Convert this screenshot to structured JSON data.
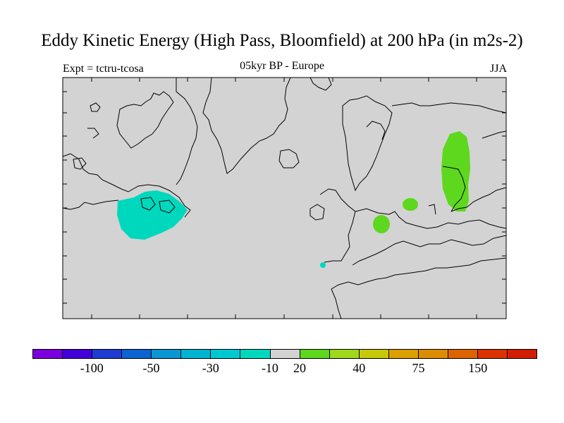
{
  "title": "Eddy Kinetic Energy (High Pass, Bloomfield) at 200 hPa (in m2s-2)",
  "expt_label": "Expt = tctru-tcosa",
  "subtitle": "05kyr BP - Europe",
  "season": "JJA",
  "map": {
    "background_color": "#d3d3d3",
    "coastline_color": "#000000",
    "anomaly_regions": [
      {
        "name": "negative-anomaly-region",
        "color": "#00d8be"
      },
      {
        "name": "positive-anomaly-region",
        "color": "#5ed81e"
      }
    ]
  },
  "colorbar": {
    "colors": [
      "#7c00dc",
      "#4400d8",
      "#1e3cd2",
      "#0a64d2",
      "#0a96d2",
      "#00b4d2",
      "#00c8d2",
      "#00d8be",
      "#d3d3d3",
      "#5ed81e",
      "#a0d81e",
      "#c8c80a",
      "#dca000",
      "#dc8c00",
      "#dc6400",
      "#dc3200",
      "#d21e00"
    ],
    "labels": [
      "-100",
      "-50",
      "-30",
      "-10",
      "20",
      "40",
      "75",
      "150"
    ]
  }
}
